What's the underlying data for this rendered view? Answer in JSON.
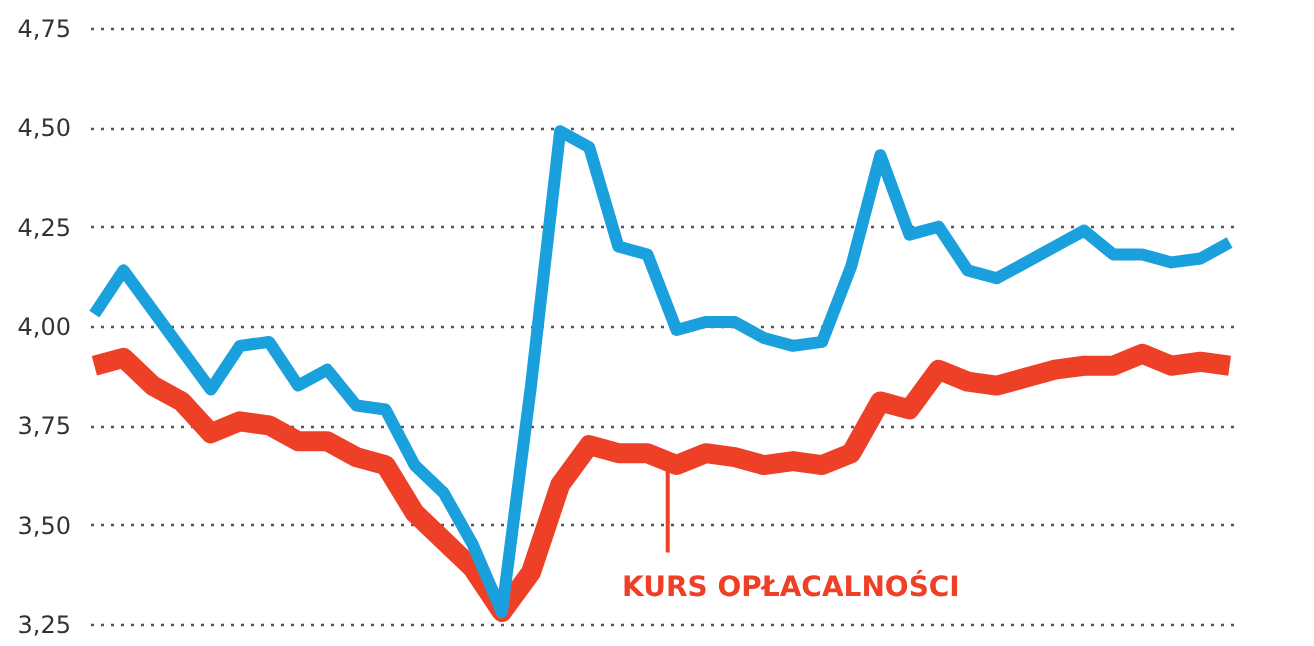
{
  "chart_data": {
    "type": "line",
    "categories": [
      null,
      null,
      null,
      null,
      null,
      null,
      null,
      null,
      null,
      null,
      null,
      null,
      null,
      null,
      null,
      null,
      null,
      null,
      null,
      null,
      null,
      null,
      null,
      null,
      null,
      null,
      null,
      null,
      null,
      null,
      null,
      null,
      null,
      null,
      null,
      null,
      null,
      null,
      null,
      null
    ],
    "series": [
      {
        "color": "#ee4027",
        "values": [
          3.9,
          3.92,
          3.85,
          3.81,
          3.73,
          3.76,
          3.75,
          3.71,
          3.71,
          3.67,
          3.65,
          3.53,
          3.46,
          3.39,
          3.28,
          3.38,
          3.6,
          3.7,
          3.68,
          3.68,
          3.65,
          3.68,
          3.67,
          3.65,
          3.66,
          3.65,
          3.68,
          3.81,
          3.79,
          3.89,
          3.86,
          3.85,
          3.87,
          3.89,
          3.9,
          3.9,
          3.93,
          3.9,
          3.91,
          3.9
        ]
      },
      {
        "color": "#1aa0dc",
        "values": [
          4.03,
          4.14,
          4.04,
          3.94,
          3.84,
          3.95,
          3.96,
          3.85,
          3.89,
          3.8,
          3.79,
          3.65,
          3.58,
          3.45,
          3.28,
          3.85,
          4.49,
          4.45,
          4.2,
          4.18,
          3.99,
          4.01,
          4.01,
          3.97,
          3.95,
          3.96,
          4.15,
          4.43,
          4.23,
          4.25,
          4.14,
          4.12,
          4.16,
          4.2,
          4.24,
          4.18,
          4.18,
          4.16,
          4.17,
          4.21
        ]
      }
    ],
    "ylim": [
      3.25,
      4.75
    ],
    "yticks": [
      {
        "value": 3.25,
        "label": "3,25"
      },
      {
        "value": 3.5,
        "label": "3,50"
      },
      {
        "value": 3.75,
        "label": "3,75"
      },
      {
        "value": 4,
        "label": "4,00"
      },
      {
        "value": 4.25,
        "label": "4,25"
      },
      {
        "value": 4.5,
        "label": "4,50"
      },
      {
        "value": 4.75,
        "label": "4,75"
      }
    ],
    "grid": "y",
    "line_style": "solid",
    "marker": "none",
    "annotations": [
      "KURS OPŁACALNOŚCI"
    ]
  }
}
